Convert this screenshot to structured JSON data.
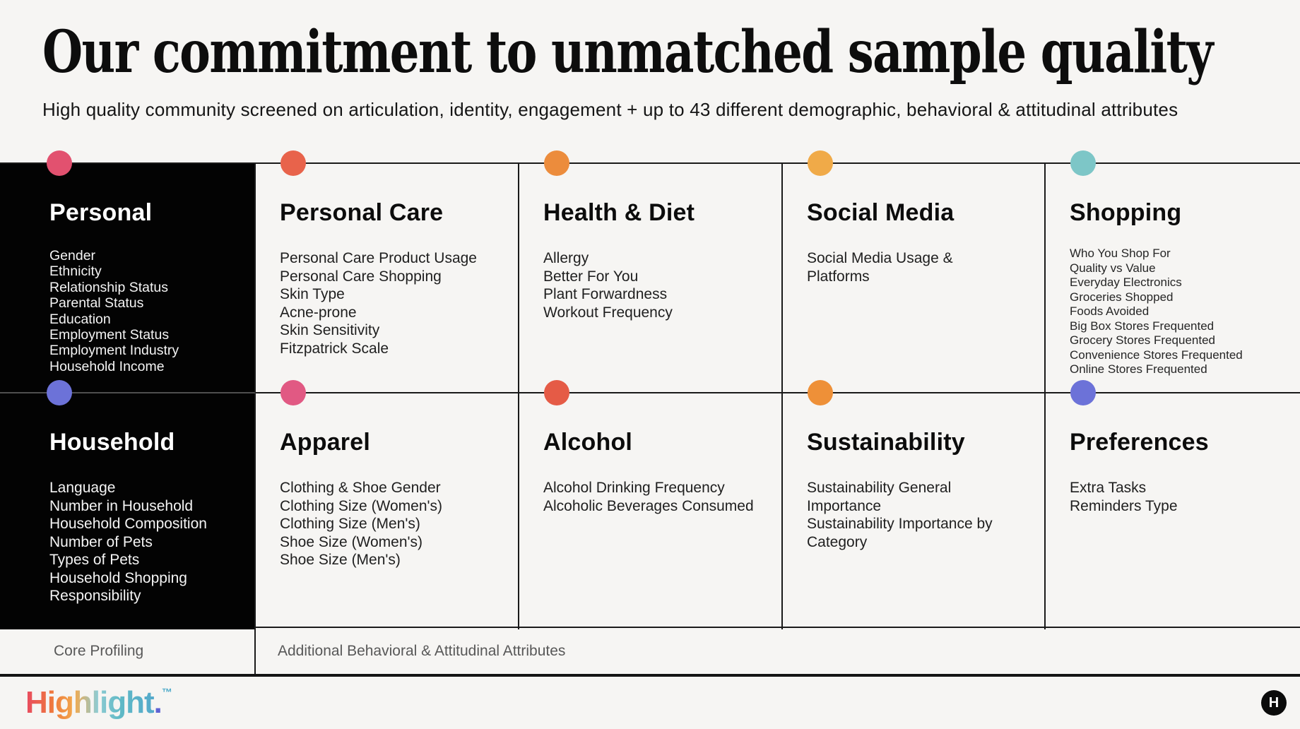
{
  "header": {
    "title": "Our commitment to unmatched sample quality",
    "subtitle": "High quality community screened on articulation, identity, engagement + up to 43 different demographic, behavioral & attitudinal attributes"
  },
  "cards": [
    {
      "title": "Personal",
      "dot_color": "#E2516F",
      "items": [
        "Gender",
        "Ethnicity",
        "Relationship Status",
        "Parental Status",
        "Education",
        "Employment Status",
        "Employment Industry",
        "Household Income"
      ]
    },
    {
      "title": "Personal Care",
      "dot_color": "#E8634B",
      "items": [
        "Personal Care Product Usage",
        "Personal Care Shopping",
        "Skin Type",
        "Acne-prone",
        "Skin Sensitivity",
        "Fitzpatrick Scale"
      ]
    },
    {
      "title": "Health & Diet",
      "dot_color": "#EC8C3C",
      "items": [
        "Allergy",
        "Better For You",
        "Plant Forwardness",
        "Workout Frequency"
      ]
    },
    {
      "title": "Social Media",
      "dot_color": "#F0AA48",
      "items": [
        "Social Media Usage & Platforms"
      ]
    },
    {
      "title": "Shopping",
      "dot_color": "#7DC6C7",
      "items": [
        "Who You Shop For",
        "Quality vs Value",
        "Everyday Electronics",
        "Groceries Shopped",
        "Foods Avoided",
        "Big Box Stores Frequented",
        "Grocery Stores Frequented",
        "Convenience Stores Frequented",
        "Online Stores Frequented"
      ]
    },
    {
      "title": "Household",
      "dot_color": "#6C72D8",
      "items": [
        "Language",
        "Number in Household",
        "Household Composition",
        "Number of Pets",
        "Types of Pets",
        "Household Shopping Responsibility"
      ]
    },
    {
      "title": "Apparel",
      "dot_color": "#E15983",
      "items": [
        "Clothing & Shoe Gender",
        "Clothing Size (Women's)",
        "Clothing Size (Men's)",
        "Shoe Size (Women's)",
        "Shoe Size (Men's)"
      ]
    },
    {
      "title": "Alcohol",
      "dot_color": "#E55B46",
      "items": [
        "Alcohol Drinking Frequency",
        "Alcoholic Beverages Consumed"
      ]
    },
    {
      "title": "Sustainability",
      "dot_color": "#EE9038",
      "items": [
        "Sustainability General Importance",
        "Sustainability Importance by Category"
      ]
    },
    {
      "title": "Preferences",
      "dot_color": "#6C72D8",
      "items": [
        "Extra Tasks",
        "Reminders Type"
      ]
    }
  ],
  "legend": {
    "core_label": "Core Profiling",
    "additional_label": "Additional Behavioral & Attitudinal Attributes"
  },
  "footer": {
    "logo_word": "Highlight",
    "logo_period": ".",
    "logo_tm": "™",
    "badge_letter": "H"
  },
  "colors": {
    "background": "#F6F5F3",
    "card_dark": "#030303",
    "grid_line": "#1a1a1a"
  }
}
